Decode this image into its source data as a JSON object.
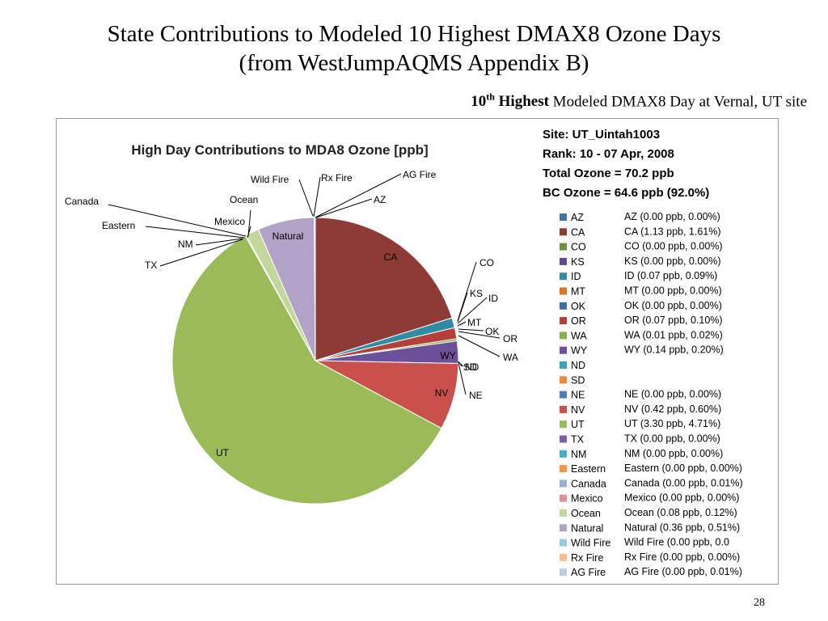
{
  "slide": {
    "title_line1": "State Contributions to Modeled 10 Highest DMAX8 Ozone Days",
    "title_line2": "(from WestJumpAQMS Appendix B)",
    "subtitle_rank": "10",
    "subtitle_sup": "th",
    "subtitle_bold": " Highest",
    "subtitle_rest": " Modeled DMAX8 Day at Vernal, UT site",
    "page_number": "28"
  },
  "info": {
    "site": "Site: UT_Uintah1003",
    "rank": "Rank: 10 - 07 Apr, 2008",
    "total": "Total Ozone = 70.2 ppb",
    "bc": "BC Ozone = 64.6 ppb (92.0%)"
  },
  "chart_data": {
    "type": "pie",
    "title": "High Day Contributions to MDA8 Ozone [ppb]",
    "series": [
      {
        "name": "AZ",
        "value": 0.0,
        "percent": 0.0,
        "color": "#4572A7",
        "detail": "AZ (0.00 ppb, 0.00%)"
      },
      {
        "name": "CA",
        "value": 1.13,
        "percent": 1.61,
        "color": "#8E3B37",
        "detail": "CA (1.13 ppb, 1.61%)",
        "slice_label": "CA"
      },
      {
        "name": "CO",
        "value": 0.0,
        "percent": 0.0,
        "color": "#71923A",
        "detail": "CO (0.00 ppb, 0.00%)"
      },
      {
        "name": "KS",
        "value": 0.0,
        "percent": 0.0,
        "color": "#5F4B8B",
        "detail": "KS (0.00 ppb, 0.00%)"
      },
      {
        "name": "ID",
        "value": 0.07,
        "percent": 0.09,
        "color": "#2F8CA3",
        "detail": "ID (0.07 ppb, 0.09%)"
      },
      {
        "name": "MT",
        "value": 0.0,
        "percent": 0.0,
        "color": "#D9762A",
        "detail": "MT (0.00 ppb, 0.00%)"
      },
      {
        "name": "OK",
        "value": 0.0,
        "percent": 0.0,
        "color": "#3E6CA6",
        "detail": "OK (0.00 ppb, 0.00%)"
      },
      {
        "name": "OR",
        "value": 0.07,
        "percent": 0.1,
        "color": "#B5403B",
        "detail": "OR (0.07 ppb, 0.10%)"
      },
      {
        "name": "WA",
        "value": 0.01,
        "percent": 0.02,
        "color": "#8CB04B",
        "detail": "WA (0.01 ppb, 0.02%)"
      },
      {
        "name": "WY",
        "value": 0.14,
        "percent": 0.2,
        "color": "#6A519A",
        "detail": "WY (0.14 ppb, 0.20%)",
        "slice_label": "WY"
      },
      {
        "name": "ND",
        "value": 0.0,
        "percent": 0.0,
        "color": "#3AA5B8",
        "detail": ""
      },
      {
        "name": "SD",
        "value": 0.0,
        "percent": 0.0,
        "color": "#EC8B3D",
        "detail": ""
      },
      {
        "name": "NE",
        "value": 0.0,
        "percent": 0.0,
        "color": "#4A7EBB",
        "detail": "NE (0.00 ppb, 0.00%)"
      },
      {
        "name": "NV",
        "value": 0.42,
        "percent": 0.6,
        "color": "#C9504B",
        "detail": "NV (0.42 ppb, 0.60%)",
        "slice_label": "NV"
      },
      {
        "name": "UT",
        "value": 3.3,
        "percent": 4.71,
        "color": "#9BBB59",
        "detail": "UT (3.30 ppb, 4.71%)",
        "slice_label": "UT"
      },
      {
        "name": "TX",
        "value": 0.0,
        "percent": 0.0,
        "color": "#7D5FA8",
        "detail": "TX (0.00 ppb, 0.00%)"
      },
      {
        "name": "NM",
        "value": 0.0,
        "percent": 0.0,
        "color": "#4BACC6",
        "detail": "NM (0.00 ppb, 0.00%)"
      },
      {
        "name": "Eastern",
        "value": 0.0,
        "percent": 0.0,
        "color": "#F79646",
        "detail": "Eastern (0.00 ppb, 0.00%)"
      },
      {
        "name": "Canada",
        "value": 0.0,
        "percent": 0.01,
        "color": "#95B3D7",
        "detail": "Canada (0.00 ppb, 0.01%)"
      },
      {
        "name": "Mexico",
        "value": 0.0,
        "percent": 0.0,
        "color": "#D99694",
        "detail": "Mexico (0.00 ppb, 0.00%)"
      },
      {
        "name": "Ocean",
        "value": 0.08,
        "percent": 0.12,
        "color": "#C3D69B",
        "detail": "Ocean (0.08 ppb, 0.12%)"
      },
      {
        "name": "Natural",
        "value": 0.36,
        "percent": 0.51,
        "color": "#B3A2C7",
        "detail": "Natural (0.36 ppb, 0.51%)",
        "slice_label": "Natural"
      },
      {
        "name": "Wild Fire",
        "value": 0.0,
        "percent": 0.0,
        "color": "#93CDDD",
        "detail": "Wild Fire (0.00 ppb, 0.0"
      },
      {
        "name": "Rx Fire",
        "value": 0.0,
        "percent": 0.0,
        "color": "#FAC090",
        "detail": "Rx Fire (0.00 ppb, 0.00%)"
      },
      {
        "name": "AG Fire",
        "value": 0.0,
        "percent": 0.01,
        "color": "#B9CDE5",
        "detail": "AG Fire (0.00 ppb, 0.01%)"
      }
    ],
    "outer_labels": [
      "Wild Fire",
      "Rx Fire",
      "AG Fire",
      "Canada",
      "Ocean",
      "AZ",
      "Eastern",
      "Mexico",
      "NM",
      "TX",
      "CO",
      "KS",
      "ID",
      "MT",
      "OK",
      "OR",
      "WA",
      "SD",
      "ND",
      "NE"
    ]
  }
}
